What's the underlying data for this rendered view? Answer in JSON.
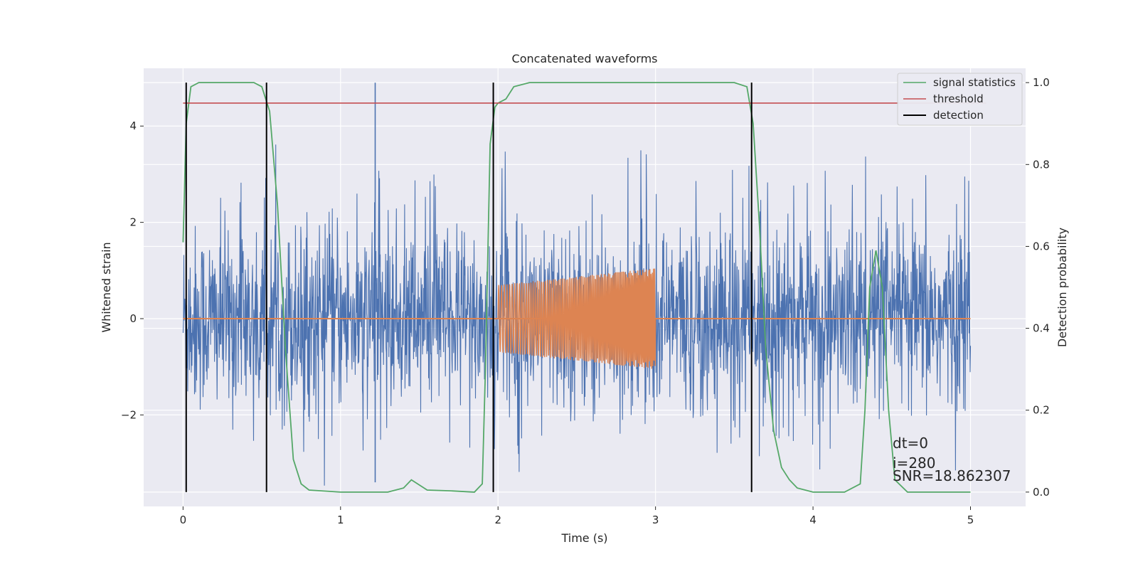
{
  "chart_data": {
    "type": "line",
    "title": "Concatenated waveforms",
    "xlabel": "Time (s)",
    "ylabel": "Whitened strain",
    "y2label": "Detection probability",
    "xlim": [
      -0.25,
      5.35
    ],
    "ylim": [
      -3.9,
      5.2
    ],
    "y2lim": [
      -0.035,
      1.035
    ],
    "xticks": [
      0,
      1,
      2,
      3,
      4,
      5
    ],
    "yticks": [
      -2,
      0,
      2,
      4
    ],
    "y2ticks": [
      0.0,
      0.2,
      0.4,
      0.6,
      0.8,
      1.0
    ],
    "ytick_labels": [
      "−2",
      "0",
      "2",
      "4"
    ],
    "y2tick_labels": [
      "0.0",
      "0.2",
      "0.4",
      "0.6",
      "0.8",
      "1.0"
    ],
    "grid": true,
    "legend_position": "top-right",
    "colors": {
      "background": "#eaeaf2",
      "noise": "#4c72b0",
      "injection": "#dd8452",
      "signal_statistics": "#55a868",
      "threshold": "#c44e52",
      "detection": "#000000"
    },
    "series": [
      {
        "name": "signal statistics",
        "axis": "right",
        "x": [
          0.0,
          0.02,
          0.05,
          0.1,
          0.2,
          0.45,
          0.5,
          0.55,
          0.6,
          0.65,
          0.7,
          0.75,
          0.8,
          1.0,
          1.3,
          1.4,
          1.45,
          1.55,
          1.7,
          1.85,
          1.9,
          1.92,
          1.95,
          1.98,
          2.0,
          2.05,
          2.1,
          2.2,
          3.5,
          3.58,
          3.62,
          3.66,
          3.7,
          3.75,
          3.8,
          3.85,
          3.9,
          4.0,
          4.2,
          4.3,
          4.33,
          4.36,
          4.4,
          4.44,
          4.48,
          4.52,
          4.6,
          5.0
        ],
        "y": [
          0.61,
          0.9,
          0.99,
          1.0,
          1.0,
          1.0,
          0.99,
          0.93,
          0.7,
          0.35,
          0.08,
          0.02,
          0.005,
          0.0,
          0.0,
          0.01,
          0.03,
          0.005,
          0.003,
          0.0,
          0.02,
          0.3,
          0.85,
          0.94,
          0.95,
          0.96,
          0.99,
          1.0,
          1.0,
          0.99,
          0.9,
          0.65,
          0.35,
          0.15,
          0.06,
          0.03,
          0.01,
          0.0,
          0.0,
          0.02,
          0.2,
          0.5,
          0.59,
          0.5,
          0.2,
          0.03,
          0.0,
          0.0
        ]
      },
      {
        "name": "threshold",
        "axis": "right",
        "x": [
          0.0,
          5.1
        ],
        "y": [
          0.95,
          0.95
        ]
      },
      {
        "name": "detection",
        "axis": "right",
        "x": [
          0.02,
          0.53,
          1.97,
          3.61
        ],
        "y_range": [
          0.0,
          1.0
        ]
      }
    ],
    "noise_trace": {
      "axis": "left",
      "x_range": [
        0.0,
        5.0
      ],
      "typical_amplitude": [
        -2.2,
        2.5
      ],
      "peak_max": 4.9,
      "peak_min": -3.5
    },
    "injection_trace": {
      "axis": "left",
      "x_range": [
        0.0,
        5.0
      ],
      "chirp_x_range": [
        2.0,
        3.0
      ],
      "amplitude_start": [
        -0.7,
        0.7
      ],
      "amplitude_end": [
        -1.05,
        1.05
      ]
    }
  },
  "legend": {
    "items": [
      "signal statistics",
      "threshold",
      "detection"
    ]
  },
  "annotations": {
    "dt": "dt=0",
    "i": "i=280",
    "snr": "SNR=18.862307"
  }
}
